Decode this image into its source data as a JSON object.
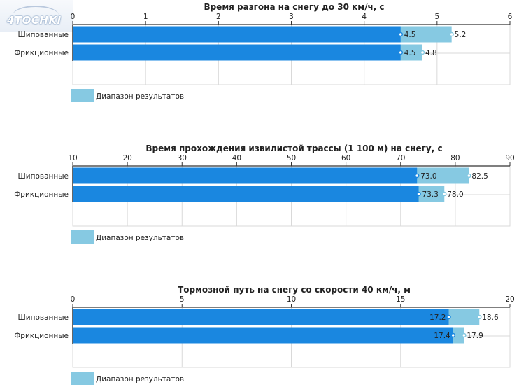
{
  "logo": {
    "text": "4TOCHKI"
  },
  "colors": {
    "min_bar": "#1a87e0",
    "range_bar": "#86c9e2",
    "axis": "#333333",
    "grid": "#d9d9d9"
  },
  "chart_data": [
    {
      "type": "bar",
      "orientation": "horizontal",
      "title": "Время разгона на снегу до 30 км/ч, с",
      "categories": [
        "Шипованные",
        "Фрикционные"
      ],
      "series": [
        {
          "name": "",
          "values": [
            4.5,
            4.5
          ]
        },
        {
          "name": "Диапазон результатов",
          "values": [
            5.2,
            4.8
          ]
        }
      ],
      "xlim": [
        0,
        6
      ],
      "ticks": [
        0,
        1,
        2,
        3,
        4,
        5,
        6
      ],
      "legend": "bottom-left",
      "grid": true
    },
    {
      "type": "bar",
      "orientation": "horizontal",
      "title": "Время прохождения извилистой трассы (1 100 м) на снегу, с",
      "categories": [
        "Шипованные",
        "Фрикционные"
      ],
      "series": [
        {
          "name": "",
          "values": [
            73.0,
            73.3
          ]
        },
        {
          "name": "Диапазон результатов",
          "values": [
            82.5,
            78.0
          ]
        }
      ],
      "xlim": [
        10,
        90
      ],
      "ticks": [
        10,
        20,
        30,
        40,
        50,
        60,
        70,
        80,
        90
      ],
      "legend": "bottom-left",
      "grid": true
    },
    {
      "type": "bar",
      "orientation": "horizontal",
      "title": "Тормозной путь на снегу со скорости 40 км/ч, м",
      "categories": [
        "Шипованные",
        "Фрикционные"
      ],
      "series": [
        {
          "name": "",
          "values": [
            17.2,
            17.4
          ]
        },
        {
          "name": "Диапазон результатов",
          "values": [
            18.6,
            17.9
          ]
        }
      ],
      "xlim": [
        0,
        20
      ],
      "ticks": [
        0,
        5,
        10,
        15,
        20
      ],
      "legend": "bottom-left",
      "grid": true
    }
  ],
  "value_text": [
    {
      "min": [
        "4.5",
        "4.5"
      ],
      "max": [
        "5.2",
        "4.8"
      ]
    },
    {
      "min": [
        "73.0",
        "73.3"
      ],
      "max": [
        "82.5",
        "78.0"
      ]
    },
    {
      "min": [
        "17.2",
        "17.4"
      ],
      "max": [
        "18.6",
        "17.9"
      ]
    }
  ],
  "min_label_inside": [
    false,
    false,
    true
  ]
}
